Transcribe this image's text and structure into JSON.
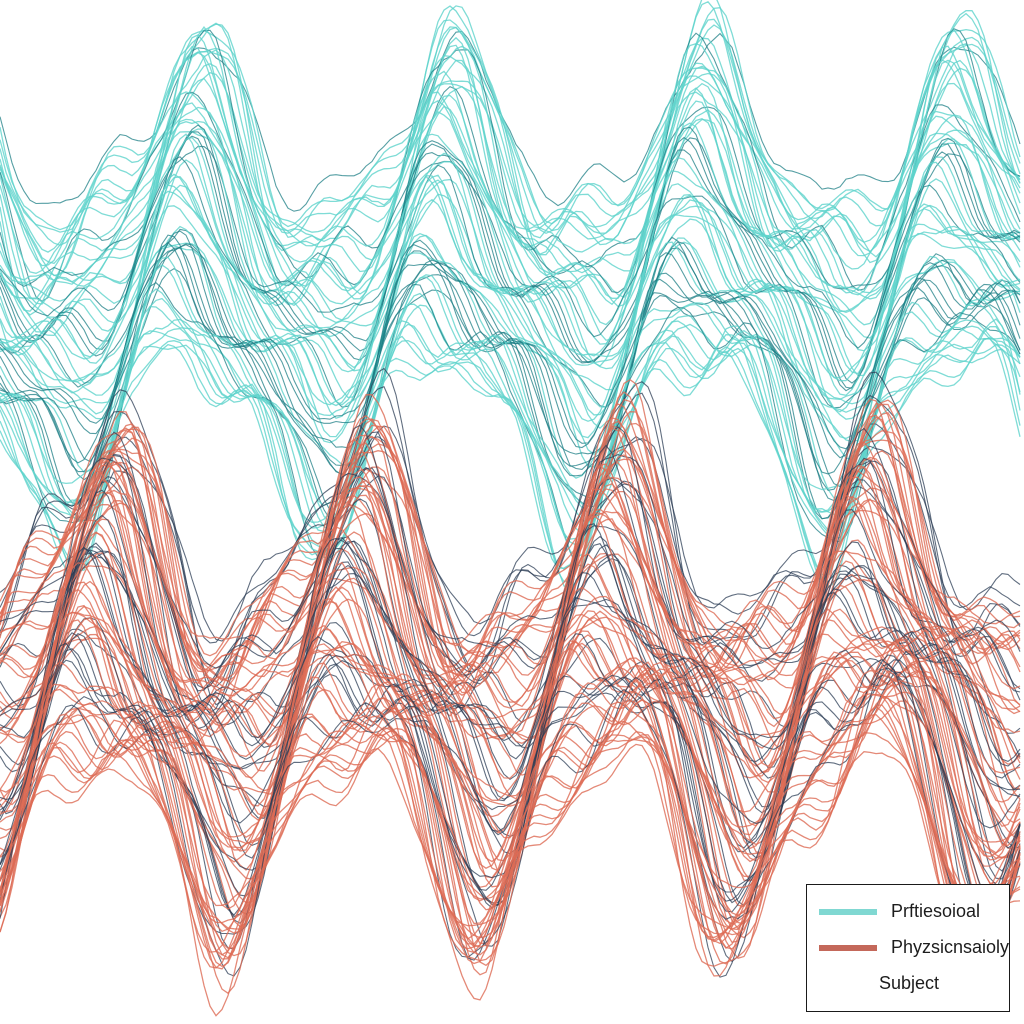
{
  "chart_data": {
    "type": "line",
    "title": "",
    "xlabel": "",
    "ylabel": "",
    "grid": false,
    "legend_position": "bottom-right",
    "series": [
      {
        "name": "Prftiesoioal",
        "color": "#5fd3cc",
        "accent": "#1e7f86",
        "lines": 60,
        "center": 0.28,
        "amplitude": 0.085,
        "phase": 0.0
      },
      {
        "name": "Phyzsicnsaioly",
        "color": "#dd6b55",
        "accent": "#2c3e55",
        "lines": 90,
        "center": 0.67,
        "amplitude": 0.095,
        "phase": 0.35
      }
    ],
    "legend": {
      "entries": [
        {
          "label": "Prftiesoioal",
          "color": "#80d8d2"
        },
        {
          "label": "Phyzsicnsaioly",
          "color": "#c4685a"
        }
      ],
      "extra_label": "Subject"
    }
  }
}
